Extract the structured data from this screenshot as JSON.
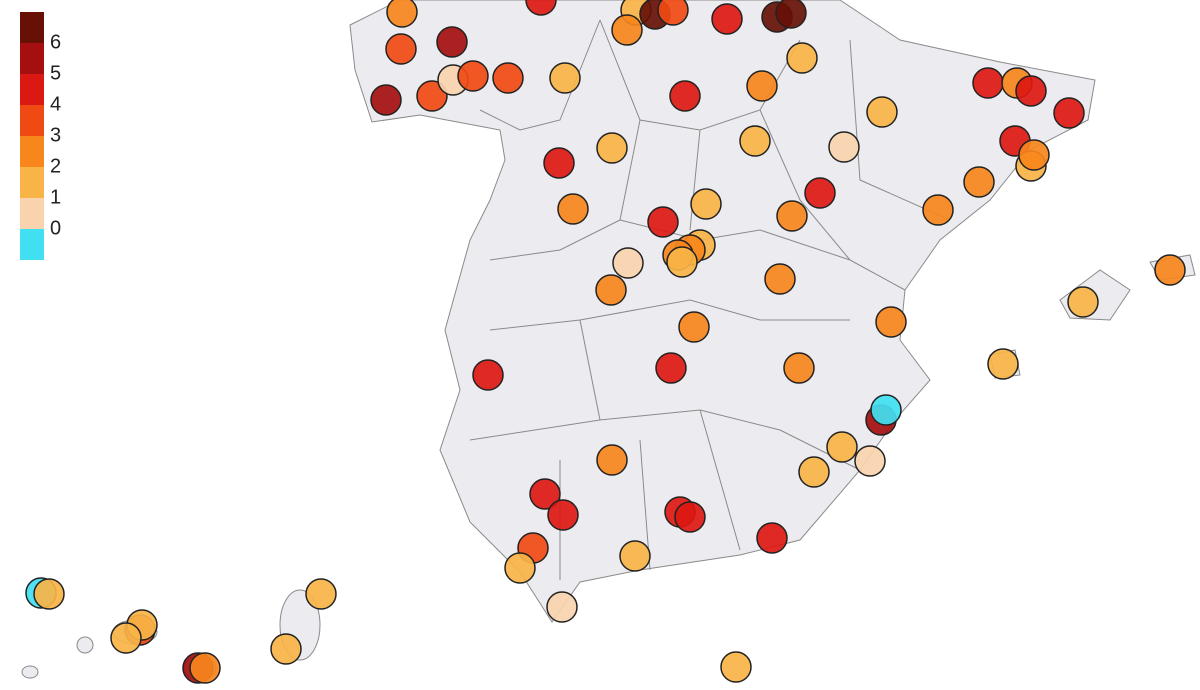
{
  "chart_data": {
    "type": "map",
    "legend": {
      "breaks": [
        6,
        5,
        4,
        3,
        2,
        1,
        0
      ],
      "colors": [
        "#661006",
        "#a50f0f",
        "#dc1812",
        "#f04a14",
        "#f7861c",
        "#f9b447",
        "#f9d2ae",
        "#40e0f2"
      ]
    },
    "values": [
      2.5,
      4.5,
      1.5,
      6.5,
      3.5,
      4.5,
      6.5,
      6.5,
      2.5,
      3.5,
      5.5,
      5.5,
      3.5,
      0.5,
      3.5,
      3.5,
      1.5,
      4.5,
      2.5,
      1.5,
      4.5,
      2.5,
      4.5,
      4.5,
      1.5,
      4.5,
      1.5,
      1.5,
      0.5,
      4.5,
      1.5,
      2.5,
      2.5,
      4.5,
      2.5,
      2.5,
      2.5,
      4.5,
      1.5,
      1.5,
      2.5,
      2.5,
      1.5,
      0.5,
      2.5,
      2.5,
      2.5,
      2.5,
      1.5,
      2.5,
      4.5,
      4.5,
      2.5,
      1.5,
      5.5,
      -0.5,
      1.5,
      0.5,
      1.5,
      2.5,
      4.5,
      4.5,
      4.5,
      4.5,
      4.5,
      3.5,
      1.5,
      1.5,
      0.5,
      -0.5,
      1.5,
      1.5,
      3.5,
      1.5,
      1.5,
      1.5,
      5.5,
      2.5,
      1.5
    ]
  }
}
